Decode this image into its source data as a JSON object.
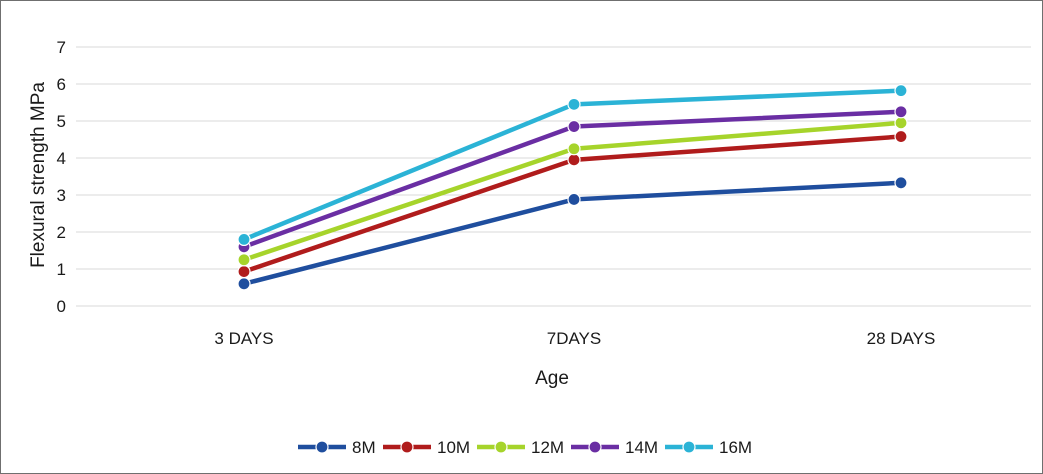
{
  "chart_data": {
    "type": "line",
    "categories": [
      "3 DAYS",
      "7DAYS",
      "28 DAYS"
    ],
    "xlabel": "Age",
    "ylabel": "Flexural strength MPa",
    "ylim": [
      0,
      7
    ],
    "yticks": [
      "0",
      "1",
      "2",
      "3",
      "4",
      "5",
      "6",
      "7"
    ],
    "grid": "horizontal",
    "legend_position": "bottom",
    "series": [
      {
        "name": "8M",
        "color": "#1f4e9e",
        "values": [
          0.6,
          2.88,
          3.33
        ]
      },
      {
        "name": "10M",
        "color": "#b01c1c",
        "values": [
          0.93,
          3.95,
          4.58
        ]
      },
      {
        "name": "12M",
        "color": "#a6d42b",
        "values": [
          1.25,
          4.25,
          4.95
        ]
      },
      {
        "name": "14M",
        "color": "#6a2ea3",
        "values": [
          1.6,
          4.85,
          5.25
        ]
      },
      {
        "name": "16M",
        "color": "#2bb3d6",
        "values": [
          1.8,
          5.45,
          5.82
        ]
      }
    ]
  }
}
